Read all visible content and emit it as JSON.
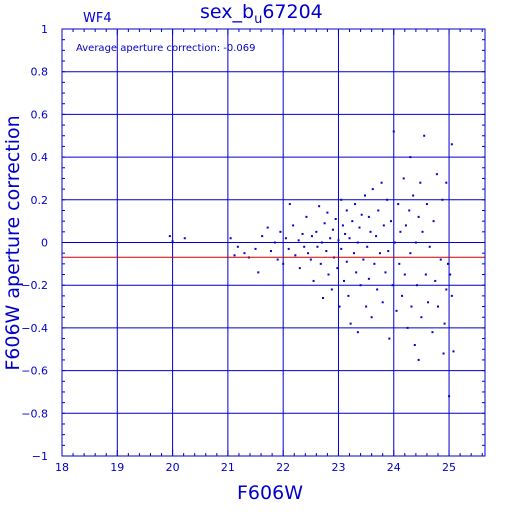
{
  "chart_data": {
    "type": "scatter",
    "title": "sex_b_u67204",
    "title_parts": {
      "main": "sex_b",
      "sub": "u",
      "rest": "67204"
    },
    "panel_label": "WF4",
    "xlabel": "F606W",
    "ylabel": "F606W aperture correction",
    "annotation": "Average aperture correction: -0.069",
    "average_line": -0.069,
    "xlim": [
      18,
      25.65
    ],
    "ylim": [
      -1,
      1
    ],
    "grid": true,
    "x_ticks": [
      18,
      19,
      20,
      21,
      22,
      23,
      24,
      25
    ],
    "y_ticks": [
      -1,
      -0.8,
      -0.6,
      -0.4,
      -0.2,
      0,
      0.2,
      0.4,
      0.6,
      0.8,
      1
    ],
    "x_tick_labels": [
      "18",
      "19",
      "20",
      "21",
      "22",
      "23",
      "24",
      "25"
    ],
    "y_tick_labels": [
      "−1",
      "−0.8",
      "−0.6",
      "−0.4",
      "−0.2",
      "0",
      "0.2",
      "0.4",
      "0.6",
      "0.8",
      "1"
    ],
    "colors": {
      "axes": "#0000cc",
      "points": "#0000cc",
      "average_line": "#cc0000"
    },
    "series": [
      {
        "points": [
          [
            19.95,
            0.03
          ],
          [
            20.0,
            0.005
          ],
          [
            20.22,
            0.02
          ],
          [
            21.05,
            0.02
          ],
          [
            21.12,
            -0.06
          ],
          [
            21.18,
            -0.02
          ],
          [
            21.3,
            -0.05
          ],
          [
            21.38,
            -0.07
          ],
          [
            21.5,
            -0.03
          ],
          [
            21.55,
            -0.14
          ],
          [
            21.62,
            0.03
          ],
          [
            21.72,
            0.07
          ],
          [
            21.78,
            -0.04
          ],
          [
            21.85,
            0.0
          ],
          [
            21.9,
            -0.08
          ],
          [
            21.95,
            0.05
          ],
          [
            22.0,
            -0.1
          ],
          [
            22.05,
            0.02
          ],
          [
            22.1,
            -0.03
          ],
          [
            22.12,
            0.18
          ],
          [
            22.18,
            0.08
          ],
          [
            22.22,
            -0.06
          ],
          [
            22.28,
            0.01
          ],
          [
            22.3,
            -0.12
          ],
          [
            22.35,
            0.04
          ],
          [
            22.38,
            -0.02
          ],
          [
            22.42,
            0.12
          ],
          [
            22.45,
            -0.05
          ],
          [
            22.5,
            -0.08
          ],
          [
            22.52,
            0.03
          ],
          [
            22.55,
            -0.18
          ],
          [
            22.6,
            0.05
          ],
          [
            22.62,
            -0.02
          ],
          [
            22.65,
            0.17
          ],
          [
            22.68,
            -0.1
          ],
          [
            22.7,
            0.0
          ],
          [
            22.72,
            -0.26
          ],
          [
            22.75,
            0.09
          ],
          [
            22.78,
            -0.04
          ],
          [
            22.8,
            0.14
          ],
          [
            22.82,
            -0.15
          ],
          [
            22.85,
            0.02
          ],
          [
            22.88,
            -0.22
          ],
          [
            22.9,
            0.06
          ],
          [
            22.92,
            -0.07
          ],
          [
            22.95,
            0.11
          ],
          [
            22.98,
            -0.12
          ],
          [
            23.0,
            0.01
          ],
          [
            23.02,
            -0.3
          ],
          [
            23.05,
            0.2
          ],
          [
            23.05,
            -0.03
          ],
          [
            23.08,
            0.08
          ],
          [
            23.1,
            -0.18
          ],
          [
            23.12,
            0.04
          ],
          [
            23.15,
            -0.09
          ],
          [
            23.15,
            0.15
          ],
          [
            23.18,
            -0.25
          ],
          [
            23.2,
            0.02
          ],
          [
            23.22,
            -0.38
          ],
          [
            23.25,
            0.1
          ],
          [
            23.28,
            -0.05
          ],
          [
            23.3,
            0.18
          ],
          [
            23.32,
            -0.14
          ],
          [
            23.35,
            0.0
          ],
          [
            23.35,
            -0.42
          ],
          [
            23.38,
            0.07
          ],
          [
            23.4,
            -0.2
          ],
          [
            23.42,
            0.13
          ],
          [
            23.45,
            -0.08
          ],
          [
            23.48,
            0.22
          ],
          [
            23.5,
            -0.3
          ],
          [
            23.52,
            -0.02
          ],
          [
            23.55,
            0.12
          ],
          [
            23.55,
            -0.17
          ],
          [
            23.58,
            0.05
          ],
          [
            23.6,
            -0.35
          ],
          [
            23.62,
            0.25
          ],
          [
            23.65,
            -0.1
          ],
          [
            23.68,
            0.03
          ],
          [
            23.7,
            -0.22
          ],
          [
            23.72,
            0.15
          ],
          [
            23.75,
            -0.05
          ],
          [
            23.78,
            0.28
          ],
          [
            23.8,
            -0.28
          ],
          [
            23.82,
            0.08
          ],
          [
            23.85,
            -0.14
          ],
          [
            23.88,
            0.2
          ],
          [
            23.9,
            -0.04
          ],
          [
            23.92,
            -0.45
          ],
          [
            23.95,
            0.1
          ],
          [
            23.98,
            -0.2
          ],
          [
            24.0,
            0.52
          ],
          [
            24.02,
            0.0
          ],
          [
            24.05,
            -0.32
          ],
          [
            24.08,
            0.18
          ],
          [
            24.1,
            -0.1
          ],
          [
            24.12,
            0.05
          ],
          [
            24.15,
            -0.25
          ],
          [
            24.18,
            0.3
          ],
          [
            24.2,
            -0.15
          ],
          [
            24.22,
            0.08
          ],
          [
            24.25,
            -0.4
          ],
          [
            24.28,
            0.15
          ],
          [
            24.3,
            -0.05
          ],
          [
            24.3,
            0.4
          ],
          [
            24.32,
            -0.3
          ],
          [
            24.35,
            0.22
          ],
          [
            24.38,
            -0.48
          ],
          [
            24.4,
            0.0
          ],
          [
            24.42,
            -0.2
          ],
          [
            24.45,
            0.12
          ],
          [
            24.45,
            -0.55
          ],
          [
            24.48,
            0.28
          ],
          [
            24.5,
            -0.35
          ],
          [
            24.52,
            0.05
          ],
          [
            24.55,
            0.5
          ],
          [
            24.58,
            -0.15
          ],
          [
            24.6,
            0.18
          ],
          [
            24.62,
            -0.28
          ],
          [
            24.65,
            -0.02
          ],
          [
            24.7,
            -0.42
          ],
          [
            24.72,
            0.1
          ],
          [
            24.75,
            -0.18
          ],
          [
            24.78,
            0.32
          ],
          [
            24.8,
            -0.3
          ],
          [
            24.85,
            -0.08
          ],
          [
            24.88,
            0.2
          ],
          [
            24.9,
            -0.52
          ],
          [
            24.92,
            -0.38
          ],
          [
            24.95,
            -0.22
          ],
          [
            24.95,
            0.28
          ],
          [
            24.98,
            -0.1
          ],
          [
            25.0,
            -0.72
          ],
          [
            25.02,
            -0.15
          ],
          [
            25.05,
            -0.25
          ],
          [
            25.05,
            0.46
          ],
          [
            25.08,
            -0.51
          ]
        ]
      }
    ]
  }
}
